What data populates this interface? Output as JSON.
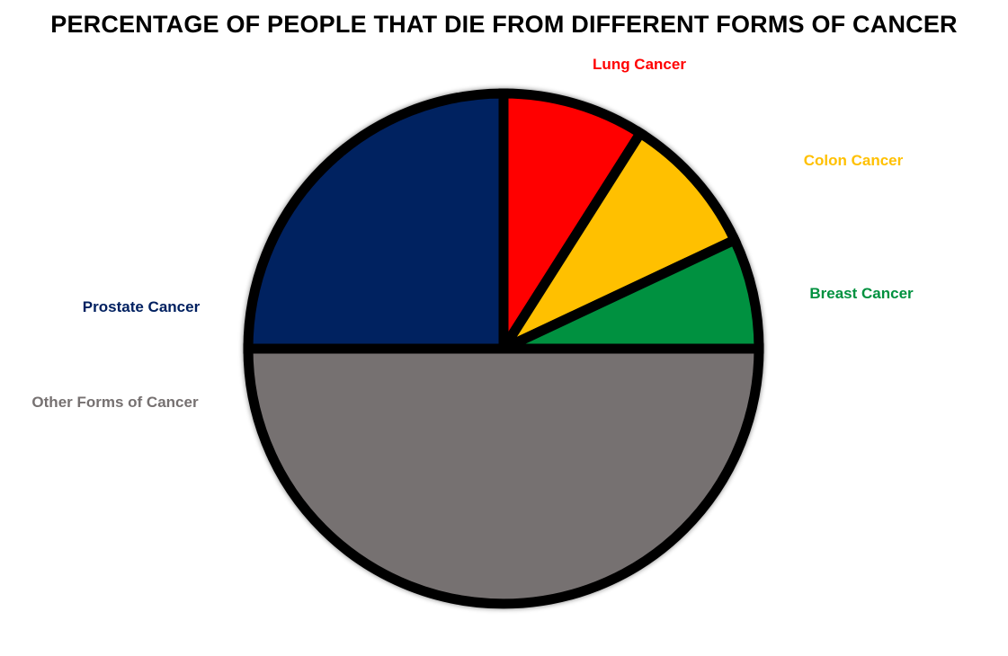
{
  "chart_data": {
    "type": "pie",
    "title": "PERCENTAGE OF PEOPLE THAT DIE FROM DIFFERENT FORMS OF CANCER",
    "slices": [
      {
        "label": "Lung Cancer",
        "value": 9,
        "color": "#ff0000"
      },
      {
        "label": "Colon Cancer",
        "value": 9,
        "color": "#ffc000"
      },
      {
        "label": "Breast Cancer",
        "value": 7,
        "color": "#00913f"
      },
      {
        "label": "Other Forms of Cancer",
        "value": 50,
        "color": "#767171"
      },
      {
        "label": "Prostate Cancer",
        "value": 25,
        "color": "#002060"
      }
    ],
    "start_angle": "12 o'clock",
    "direction": "clockwise",
    "legend": "none",
    "border_color": "#000000"
  }
}
